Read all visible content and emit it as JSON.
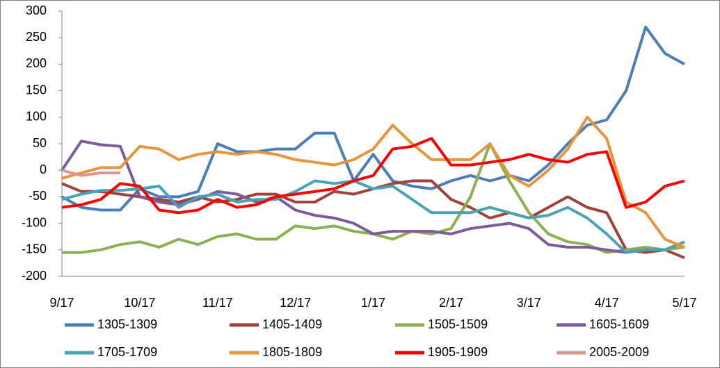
{
  "chart_data": {
    "type": "line",
    "categories": [
      "9/17",
      null,
      null,
      null,
      "10/17",
      null,
      null,
      null,
      "11/17",
      null,
      null,
      null,
      "12/17",
      null,
      null,
      null,
      "1/17",
      null,
      null,
      null,
      "2/17",
      null,
      null,
      null,
      "3/17",
      null,
      null,
      null,
      "4/17",
      null,
      null,
      null,
      "5/17"
    ],
    "series": [
      {
        "name": "1305-1309",
        "color": "#4a7ebb",
        "values": [
          -50,
          -70,
          -75,
          -75,
          -35,
          -50,
          -50,
          -40,
          50,
          35,
          35,
          40,
          40,
          70,
          70,
          -20,
          30,
          -20,
          -30,
          -35,
          -20,
          -10,
          -20,
          -10,
          -20,
          10,
          50,
          85,
          95,
          150,
          270,
          220,
          200
        ]
      },
      {
        "name": "1405-1409",
        "color": "#a0413c",
        "values": [
          -25,
          -40,
          -40,
          -45,
          -50,
          -55,
          -60,
          -50,
          -60,
          -55,
          -45,
          -45,
          -60,
          -60,
          -40,
          -45,
          -35,
          -25,
          -20,
          -20,
          -55,
          -70,
          -90,
          -80,
          -90,
          -70,
          -50,
          -70,
          -80,
          -150,
          -155,
          -150,
          -165
        ]
      },
      {
        "name": "1505-1509",
        "color": "#8cb050",
        "values": [
          -155,
          -155,
          -150,
          -140,
          -135,
          -145,
          -130,
          -140,
          -125,
          -120,
          -130,
          -130,
          -105,
          -110,
          -105,
          -115,
          -120,
          -130,
          -115,
          -120,
          -110,
          -50,
          50,
          -20,
          -80,
          -120,
          -135,
          -140,
          -155,
          -150,
          -145,
          -150,
          -145
        ]
      },
      {
        "name": "1605-1609",
        "color": "#7b5b9e",
        "values": [
          0,
          55,
          48,
          45,
          -50,
          -60,
          -65,
          -55,
          -40,
          -45,
          -60,
          -50,
          -75,
          -85,
          -90,
          -100,
          -120,
          -115,
          -115,
          -115,
          -120,
          -110,
          -105,
          -100,
          -110,
          -140,
          -145,
          -145,
          -150,
          -155,
          -150,
          -150,
          -135
        ]
      },
      {
        "name": "1705-1709",
        "color": "#4aa3b5",
        "values": [
          -55,
          -45,
          -38,
          -38,
          -35,
          -30,
          -70,
          -50,
          -45,
          -60,
          -55,
          -55,
          -40,
          -20,
          -25,
          -20,
          -35,
          -30,
          -55,
          -80,
          -80,
          -80,
          -70,
          -80,
          -90,
          -85,
          -70,
          -90,
          -120,
          -155,
          -150,
          -150,
          -135
        ]
      },
      {
        "name": "1805-1809",
        "color": "#e8943a",
        "values": [
          -15,
          -5,
          5,
          5,
          45,
          40,
          20,
          30,
          35,
          30,
          35,
          30,
          20,
          15,
          10,
          20,
          40,
          85,
          50,
          20,
          20,
          20,
          50,
          -10,
          -30,
          0,
          40,
          100,
          60,
          -60,
          -80,
          -130,
          -145
        ]
      },
      {
        "name": "1905-1909",
        "color": "#ff0000",
        "values": [
          -70,
          -65,
          -55,
          -25,
          -30,
          -75,
          -80,
          -75,
          -55,
          -70,
          -65,
          -50,
          -45,
          -40,
          -35,
          -20,
          -10,
          40,
          45,
          60,
          10,
          10,
          15,
          20,
          30,
          20,
          15,
          30,
          35,
          -70,
          -60,
          -30,
          -20
        ]
      },
      {
        "name": "2005-2009",
        "color": "#d99694",
        "values": [
          0,
          -10,
          -5,
          -5,
          null,
          null,
          null,
          null,
          null,
          null,
          null,
          null,
          null,
          null,
          null,
          null,
          null,
          null,
          null,
          null,
          null,
          null,
          null,
          null,
          null,
          null,
          null,
          null,
          null,
          null,
          null,
          null,
          null
        ]
      }
    ],
    "ylim": [
      -200,
      300
    ],
    "yticks": [
      -200,
      -150,
      -100,
      -50,
      0,
      50,
      100,
      150,
      200,
      250,
      300
    ],
    "grid": false,
    "legend": "bottom"
  }
}
